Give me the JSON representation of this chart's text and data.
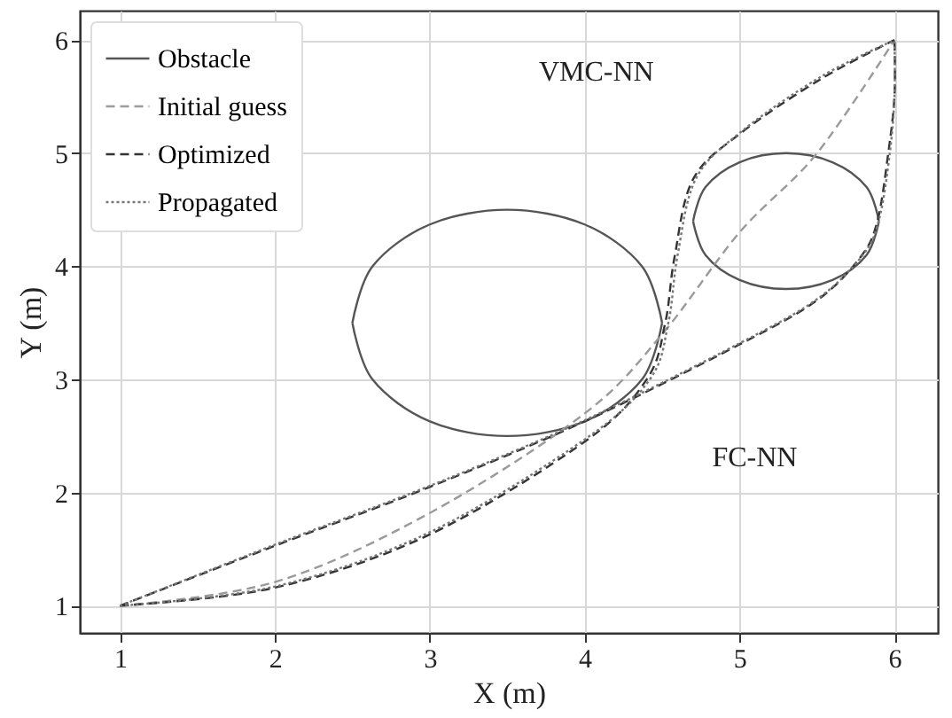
{
  "chart_data": {
    "type": "line",
    "xlabel": "X (m)",
    "ylabel": "Y (m)",
    "xlim": [
      0.74,
      6.28
    ],
    "ylim": [
      0.76,
      6.26
    ],
    "xticks": [
      1,
      2,
      3,
      4,
      5,
      6
    ],
    "yticks": [
      1,
      2,
      3,
      4,
      5,
      6
    ],
    "grid": true,
    "legend": "top left",
    "annotations": [
      "VMC-NN",
      "FC-NN"
    ],
    "series": [
      {
        "name": "Obstacle",
        "color": "#555555",
        "line_style": "solid",
        "x": [
          4.5,
          4.37,
          4.0,
          3.5,
          3.0,
          2.63,
          2.5,
          null,
          2.5,
          2.63,
          3.0,
          3.5,
          4.0,
          4.37,
          4.5,
          null,
          5.9,
          5.82,
          5.6,
          5.3,
          5.0,
          4.78,
          4.7,
          null,
          4.7,
          4.78,
          5.0,
          5.3,
          5.6,
          5.82,
          5.9
        ],
        "values": [
          3.5,
          4.0,
          4.37,
          4.5,
          4.37,
          4.0,
          3.5,
          null,
          3.5,
          3.0,
          2.63,
          2.5,
          2.63,
          3.0,
          3.5,
          null,
          4.4,
          4.7,
          4.92,
          5.0,
          4.92,
          4.7,
          4.4,
          null,
          4.4,
          4.1,
          3.88,
          3.8,
          3.88,
          4.1,
          4.4
        ]
      },
      {
        "name": "Initial guess",
        "color": "#9a9a9a",
        "line_style": "dashed",
        "x": [
          1,
          2,
          3,
          4,
          4.5,
          5,
          5.5,
          6
        ],
        "values": [
          1,
          1.21,
          1.82,
          2.7,
          3.4,
          4.3,
          5.0,
          6
        ]
      },
      {
        "name": "Optimized",
        "color": "#333333",
        "line_style": "dashed",
        "x": [
          1,
          2,
          3,
          4,
          4.4,
          4.52,
          4.58,
          4.7,
          5.01,
          5.53,
          6,
          null,
          1,
          2,
          3,
          4,
          5,
          5.5,
          5.78,
          5.89,
          5.96,
          6,
          6
        ],
        "values": [
          1,
          1.16,
          1.63,
          2.45,
          3.0,
          3.5,
          4.08,
          4.77,
          5.18,
          5.66,
          6,
          null,
          1,
          1.53,
          2.05,
          2.63,
          3.31,
          3.7,
          4.08,
          4.4,
          5.0,
          5.5,
          6
        ]
      },
      {
        "name": "Propagated",
        "color": "#777777",
        "line_style": "dotted",
        "x": [
          1,
          2,
          3,
          4,
          4.42,
          4.54,
          4.6,
          4.72,
          5.02,
          5.53,
          6,
          null,
          1,
          2,
          3,
          4,
          5,
          5.5,
          5.79,
          5.9,
          5.97,
          6,
          6
        ],
        "values": [
          1,
          1.17,
          1.65,
          2.47,
          3.0,
          3.5,
          4.1,
          4.78,
          5.2,
          5.68,
          6,
          null,
          1,
          1.54,
          2.06,
          2.64,
          3.32,
          3.71,
          4.09,
          4.41,
          5.0,
          5.5,
          6
        ]
      }
    ]
  }
}
